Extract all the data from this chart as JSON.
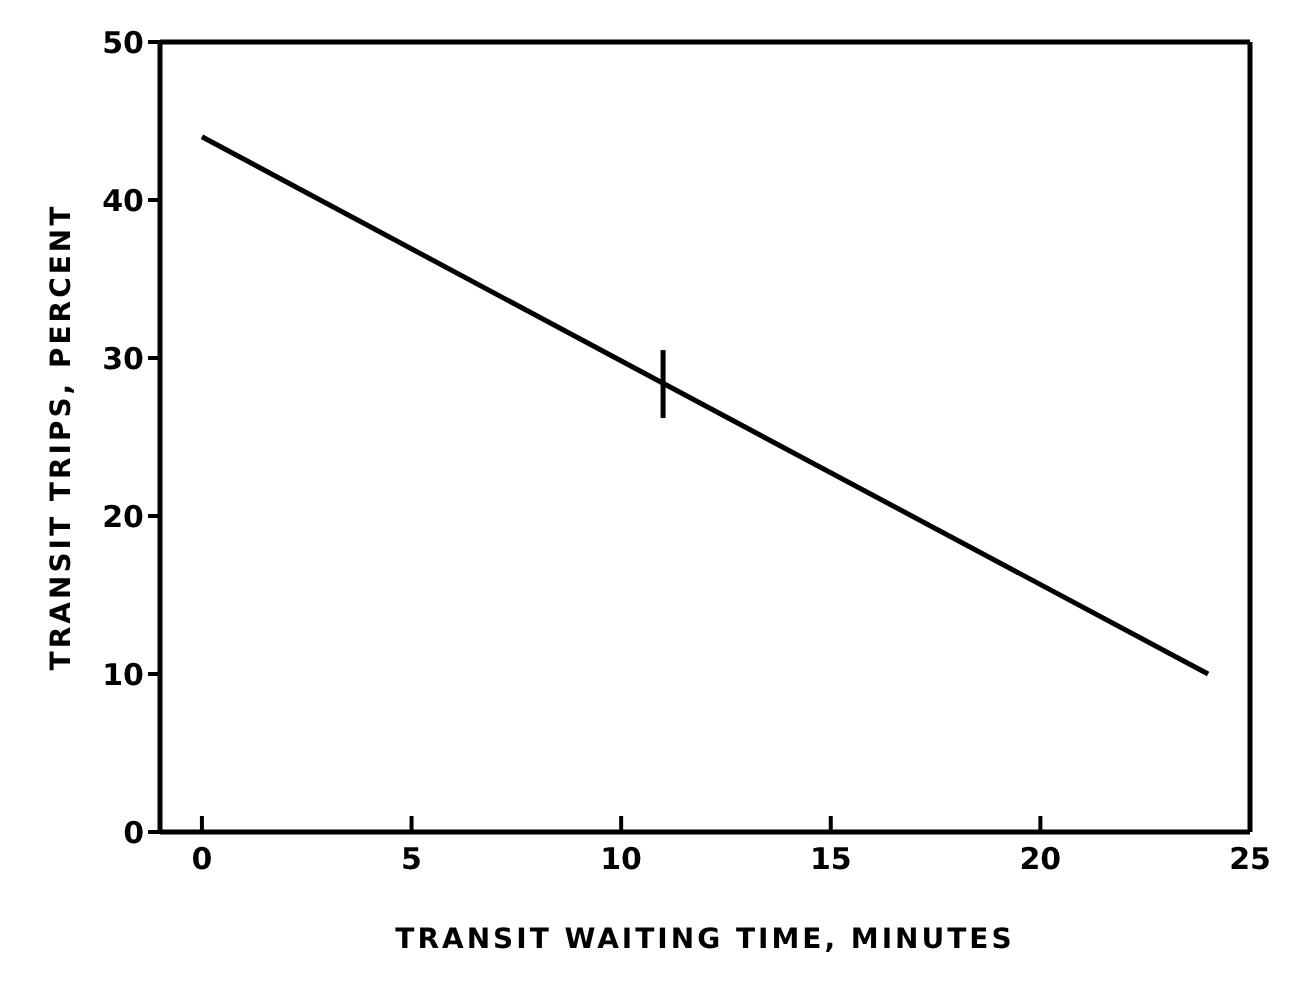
{
  "chart_data": {
    "type": "line",
    "xlabel": "TRANSIT WAITING TIME, MINUTES",
    "ylabel": "TRANSIT TRIPS, PERCENT",
    "x": [
      0,
      11,
      24
    ],
    "series": [
      {
        "color": "#000000",
        "values": [
          44,
          28.4,
          10
        ],
        "errors": [
          null,
          [
            26.2,
            30.5
          ],
          null
        ]
      }
    ],
    "xlim": [
      -1,
      25
    ],
    "ylim": [
      0,
      50
    ],
    "xticks": [
      0,
      5,
      10,
      15,
      20,
      25
    ],
    "yticks": [
      0,
      10,
      20,
      30,
      40,
      50
    ],
    "grid": false,
    "marker": "none",
    "line_style": "solid"
  }
}
